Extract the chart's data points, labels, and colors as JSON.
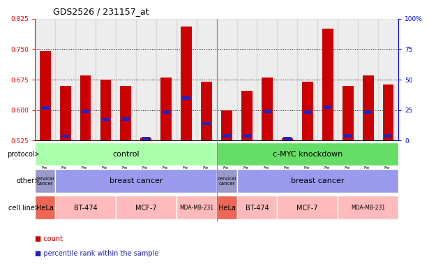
{
  "title": "GDS2526 / 231157_at",
  "samples": [
    "GSM136095",
    "GSM136097",
    "GSM136079",
    "GSM136081",
    "GSM136083",
    "GSM136085",
    "GSM136087",
    "GSM136089",
    "GSM136091",
    "GSM136096",
    "GSM136098",
    "GSM136080",
    "GSM136082",
    "GSM136084",
    "GSM136086",
    "GSM136088",
    "GSM136090",
    "GSM136092"
  ],
  "red_heights": [
    0.745,
    0.66,
    0.685,
    0.675,
    0.66,
    0.532,
    0.68,
    0.805,
    0.67,
    0.6,
    0.648,
    0.681,
    0.53,
    0.67,
    0.8,
    0.66,
    0.685,
    0.663
  ],
  "blue_heights": [
    0.605,
    0.536,
    0.597,
    0.577,
    0.578,
    0.53,
    0.595,
    0.63,
    0.567,
    0.537,
    0.537,
    0.597,
    0.53,
    0.595,
    0.607,
    0.537,
    0.595,
    0.537
  ],
  "ymin": 0.525,
  "ymax": 0.825,
  "yticks_left": [
    0.525,
    0.6,
    0.675,
    0.75,
    0.825
  ],
  "yticks_right": [
    0,
    25,
    50,
    75,
    100
  ],
  "yticks_right_labels": [
    "0",
    "25",
    "50",
    "75",
    "100%"
  ],
  "grid_lines": [
    0.6,
    0.675,
    0.75
  ],
  "bar_color_red": "#CC0000",
  "bar_color_blue": "#2222BB",
  "protocol_control_color": "#AAFFAA",
  "protocol_knockdown_color": "#66DD66",
  "other_cervical_color": "#9999CC",
  "other_breast_color": "#9999EE",
  "cellline_HeLa_color": "#EE6655",
  "cellline_other_color": "#FFBBBB",
  "xtick_bg_color": "#CCCCCC",
  "gap_color": "#888888"
}
